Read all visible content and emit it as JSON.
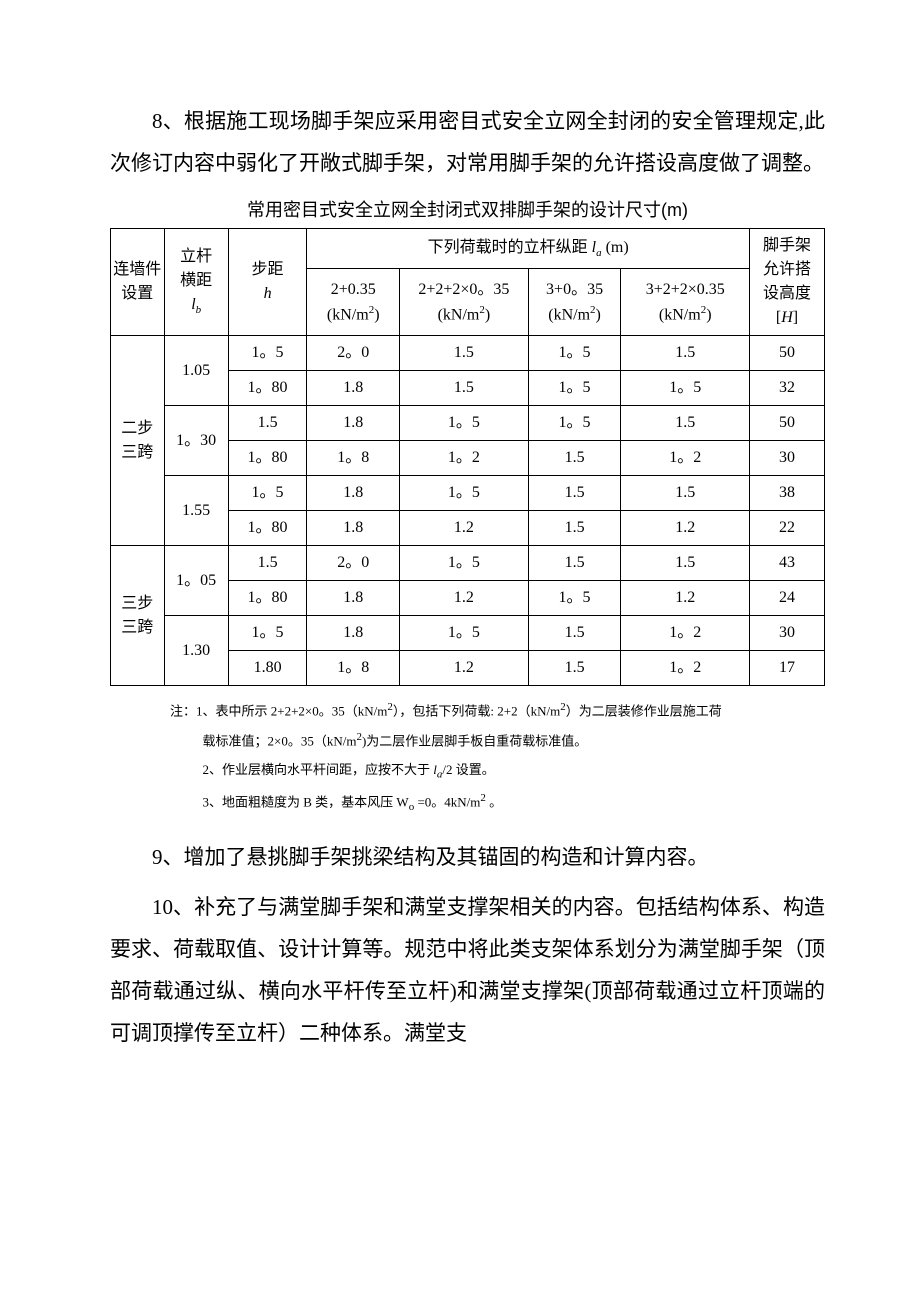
{
  "paragraphs": {
    "p8": "8、根据施工现场脚手架应采用密目式安全立网全封闭的安全管理规定,此次修订内容中弱化了开敞式脚手架，对常用脚手架的允许搭设高度做了调整。",
    "p9": "9、增加了悬挑脚手架挑梁结构及其锚固的构造和计算内容。",
    "p10": "10、补充了与满堂脚手架和满堂支撑架相关的内容。包括结构体系、构造要求、荷载取值、设计计算等。规范中将此类支架体系划分为满堂脚手架（顶部荷载通过纵、横向水平杆传至立杆)和满堂支撑架(顶部荷载通过立杆顶端的可调顶撑传至立杆）二种体系。满堂支"
  },
  "table": {
    "title": "常用密目式安全立网全封闭式双排脚手架的设计尺寸(m)",
    "title_fontsize": 18,
    "title_font": "SimHei",
    "border_color": "#000000",
    "background_color": "#ffffff",
    "cell_fontsize": 16,
    "headers": {
      "col1": "连墙件设置",
      "col2_line1": "立杆",
      "col2_line2": "横距",
      "col3_line1": "步距",
      "span_header": "下列荷载时的立杆纵距 ",
      "span_header_unit": " (m)",
      "sub_h1_line1": "2+0.35",
      "sub_h2_line1": "2+2+2×0。35",
      "sub_h3_line1": "3+0。35",
      "sub_h4_line1": "3+2+2×0.35",
      "unit": "(kN/m",
      "unit_sup": "2",
      "unit_close": ")",
      "col_last_l1": "脚手架",
      "col_last_l2": "允许搭",
      "col_last_l3": "设高度"
    },
    "groups": [
      {
        "label": "二步三跨",
        "subrows": [
          {
            "lb": "1.05",
            "rows": [
              {
                "h": "1。5",
                "c1": "2。0",
                "c2": "1.5",
                "c3": "1。5",
                "c4": "1.5",
                "H": "50"
              },
              {
                "h": "1。80",
                "c1": "1.8",
                "c2": "1.5",
                "c3": "1。5",
                "c4": "1。5",
                "H": "32"
              }
            ]
          },
          {
            "lb": "1。30",
            "rows": [
              {
                "h": "1.5",
                "c1": "1.8",
                "c2": "1。5",
                "c3": "1。5",
                "c4": "1.5",
                "H": "50"
              },
              {
                "h": "1。80",
                "c1": "1。8",
                "c2": "1。2",
                "c3": "1.5",
                "c4": "1。2",
                "H": "30"
              }
            ]
          },
          {
            "lb": "1.55",
            "rows": [
              {
                "h": "1。5",
                "c1": "1.8",
                "c2": "1。5",
                "c3": "1.5",
                "c4": "1.5",
                "H": "38"
              },
              {
                "h": "1。80",
                "c1": "1.8",
                "c2": "1.2",
                "c3": "1.5",
                "c4": "1.2",
                "H": "22"
              }
            ]
          }
        ]
      },
      {
        "label": "三步三跨",
        "subrows": [
          {
            "lb": "1。05",
            "rows": [
              {
                "h": "1.5",
                "c1": "2。0",
                "c2": "1。5",
                "c3": "1.5",
                "c4": "1.5",
                "H": "43"
              },
              {
                "h": "1。80",
                "c1": "1.8",
                "c2": "1.2",
                "c3": "1。5",
                "c4": "1.2",
                "H": "24"
              }
            ]
          },
          {
            "lb": "1.30",
            "rows": [
              {
                "h": "1。5",
                "c1": "1.8",
                "c2": "1。5",
                "c3": "1.5",
                "c4": "1。2",
                "H": "30"
              },
              {
                "h": "1.80",
                "c1": "1。8",
                "c2": "1.2",
                "c3": "1.5",
                "c4": "1。2",
                "H": "17"
              }
            ]
          }
        ]
      }
    ]
  },
  "notes": {
    "prefix": "注：",
    "n1a": "1、表中所示 2+2+2×0。35（kN/m",
    "n1b": "），包括下列荷载: 2+2（kN/m",
    "n1c": "）为二层装修作业层施工荷",
    "n1d": "载标准值；2×0。35（kN/m",
    "n1e": ")为二层作业层脚手板自重荷载标准值。",
    "n2a": "2、作业层横向水平杆间距，应按不大于 ",
    "n2b": "/2 设置。",
    "n3a": "3、地面粗糙度为 B 类，基本风压 W",
    "n3b": " =0。4kN/m",
    "n3c": " 。",
    "sup2": "2",
    "sub_o": "o",
    "la_sub": "a"
  },
  "style": {
    "text_color": "#000000",
    "body_fontsize": 21,
    "line_height": 2.0
  }
}
